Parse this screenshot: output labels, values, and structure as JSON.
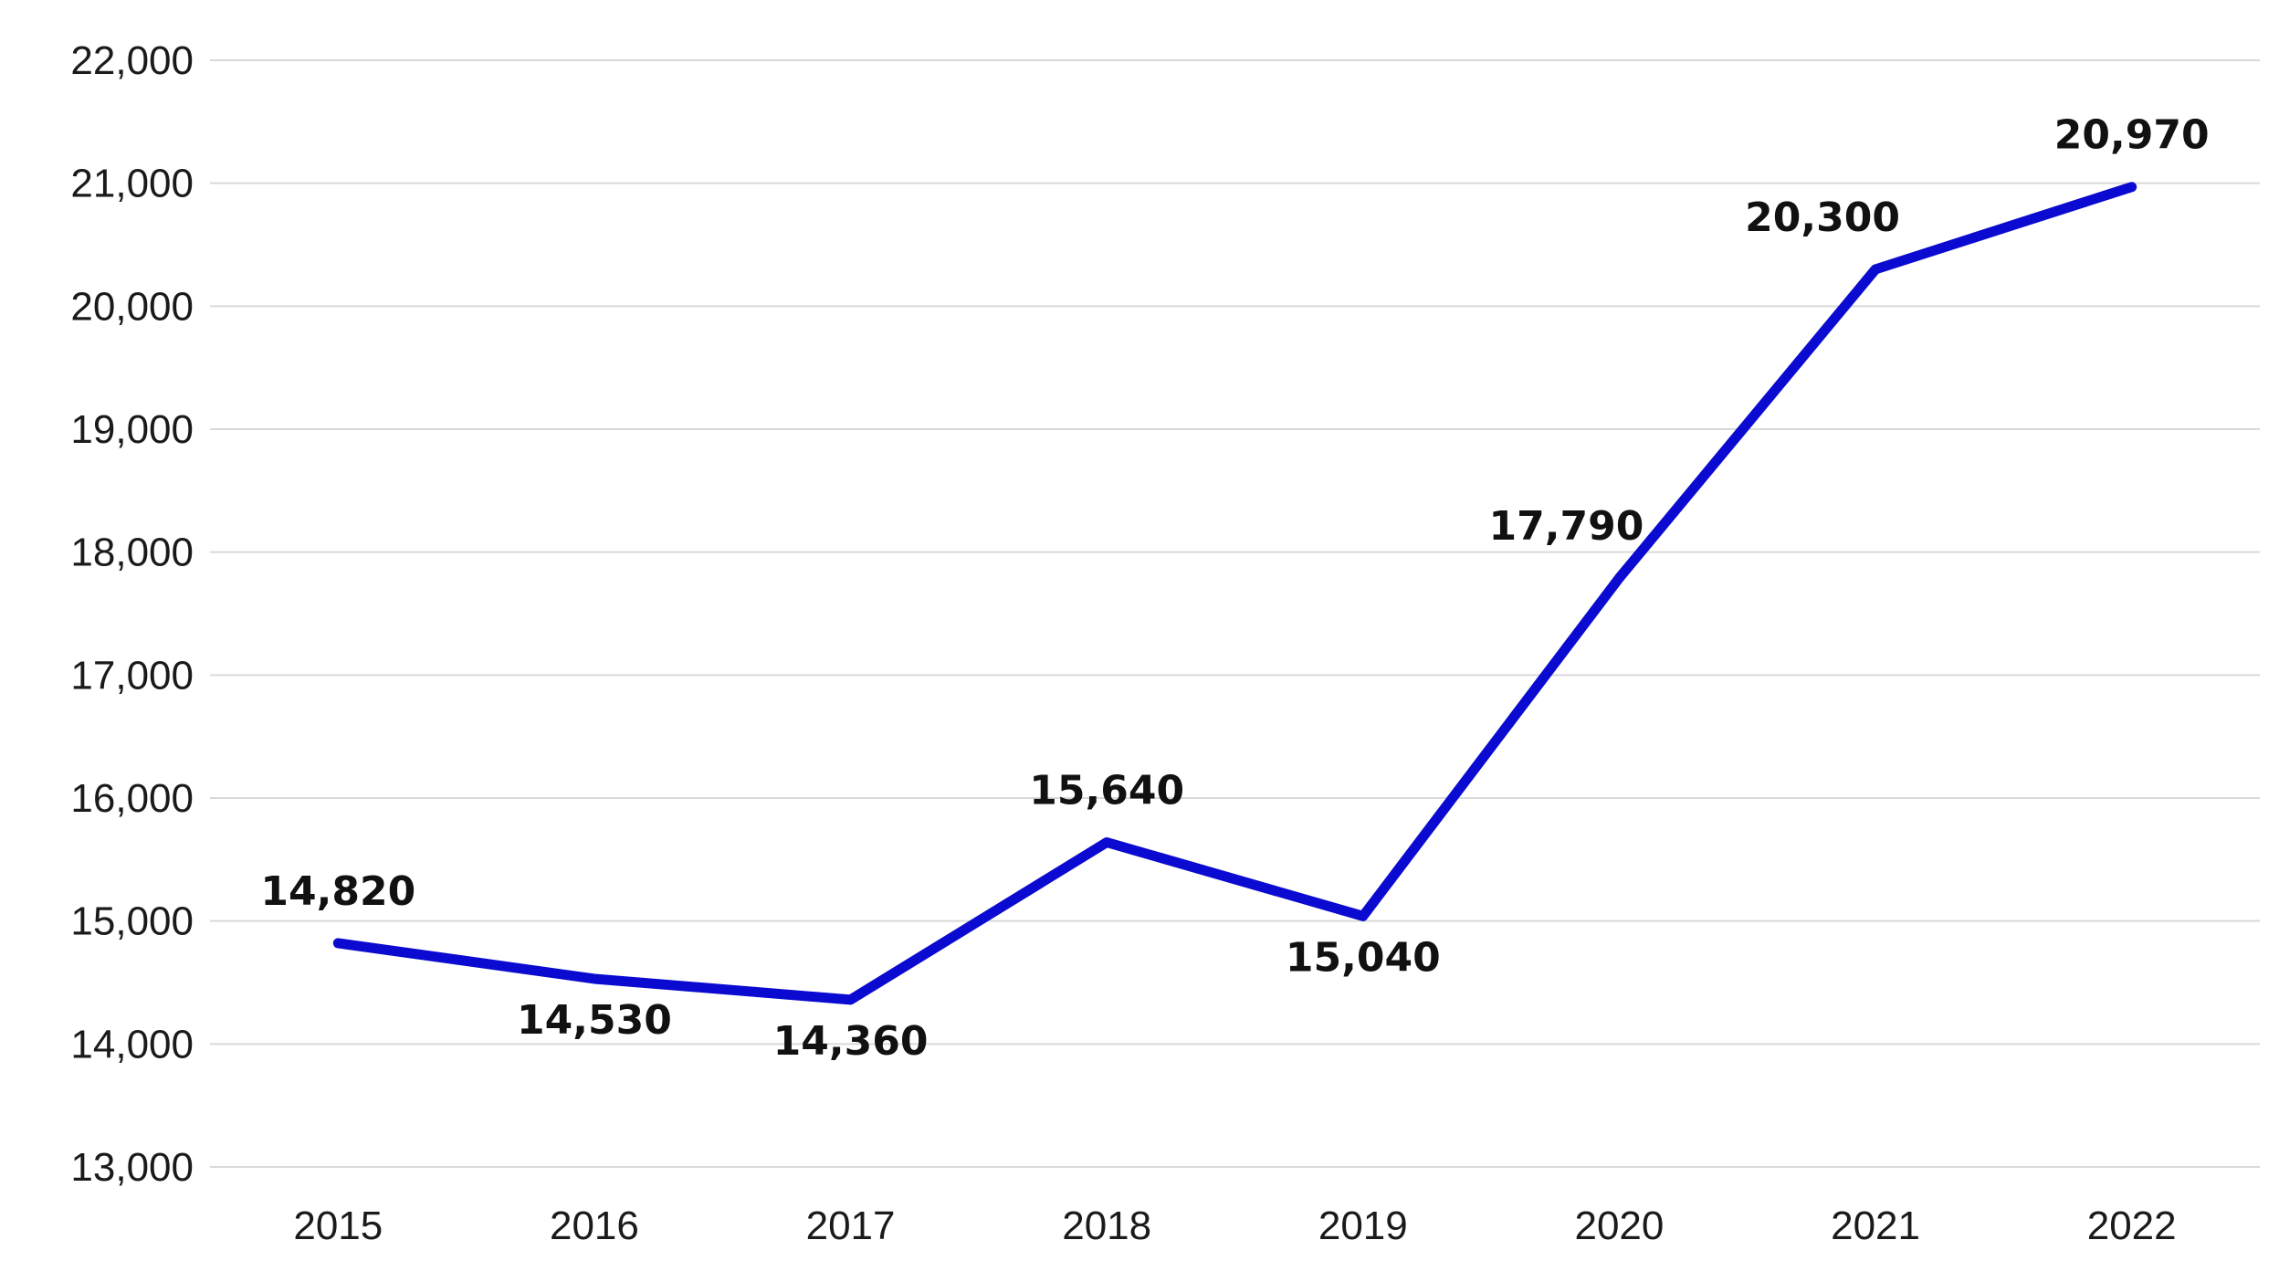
{
  "chart_data": {
    "type": "line",
    "title": "",
    "xlabel": "",
    "ylabel": "",
    "categories": [
      "2015",
      "2016",
      "2017",
      "2018",
      "2019",
      "2020",
      "2021",
      "2022"
    ],
    "series": [
      {
        "name": "",
        "values": [
          14820,
          14530,
          14360,
          15640,
          15040,
          17790,
          20300,
          20970
        ],
        "labels": [
          "14,820",
          "14,530",
          "14,360",
          "15,640",
          "15,040",
          "17,790",
          "20,300",
          "20,970"
        ],
        "label_position": [
          "above",
          "below",
          "below",
          "above",
          "below",
          "above-left",
          "above-left",
          "above"
        ]
      }
    ],
    "ylim": [
      13000,
      22000
    ],
    "yticks": [
      13000,
      14000,
      15000,
      16000,
      17000,
      18000,
      19000,
      20000,
      21000,
      22000
    ],
    "ytick_labels": [
      "13,000",
      "14,000",
      "15,000",
      "16,000",
      "17,000",
      "18,000",
      "19,000",
      "20,000",
      "21,000",
      "22,000"
    ],
    "grid": true,
    "legend": "none"
  },
  "colors": {
    "line": "#0a0ad0"
  }
}
